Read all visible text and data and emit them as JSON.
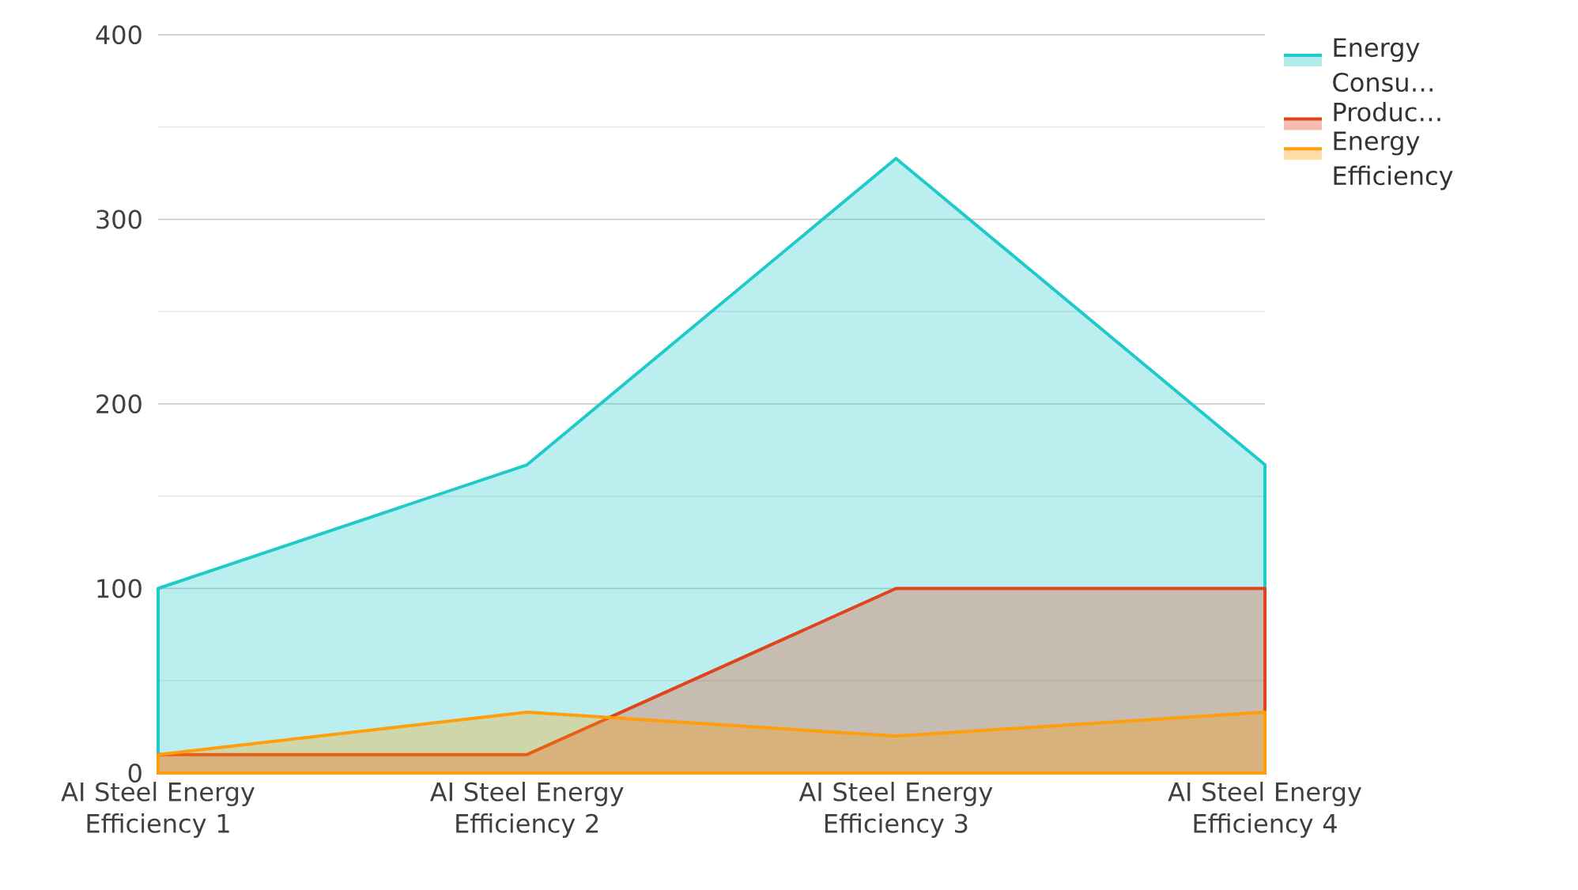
{
  "chart_data": {
    "type": "area",
    "categories": [
      "AI Steel Energy Efficiency 1",
      "AI Steel Energy Efficiency 2",
      "AI Steel Energy Efficiency 3",
      "AI Steel Energy Efficiency 4"
    ],
    "series": [
      {
        "name": "Energy Consu…",
        "color": "#1ecbc9",
        "values": [
          100,
          167,
          333,
          167
        ]
      },
      {
        "name": "Produc…",
        "color": "#e0441c",
        "values": [
          10,
          10,
          100,
          100
        ]
      },
      {
        "name": "Energy Efficiency",
        "color": "#ff9d0a",
        "values": [
          10,
          33,
          20,
          33
        ]
      }
    ],
    "ylim": [
      0,
      400
    ],
    "yticks": [
      0,
      {
        "value": 50,
        "label": null
      },
      100,
      {
        "value": 150,
        "label": null
      },
      200,
      {
        "value": 250,
        "label": null
      },
      300,
      {
        "value": 350,
        "label": null
      },
      400
    ],
    "grid": "y",
    "legend": "top right"
  }
}
